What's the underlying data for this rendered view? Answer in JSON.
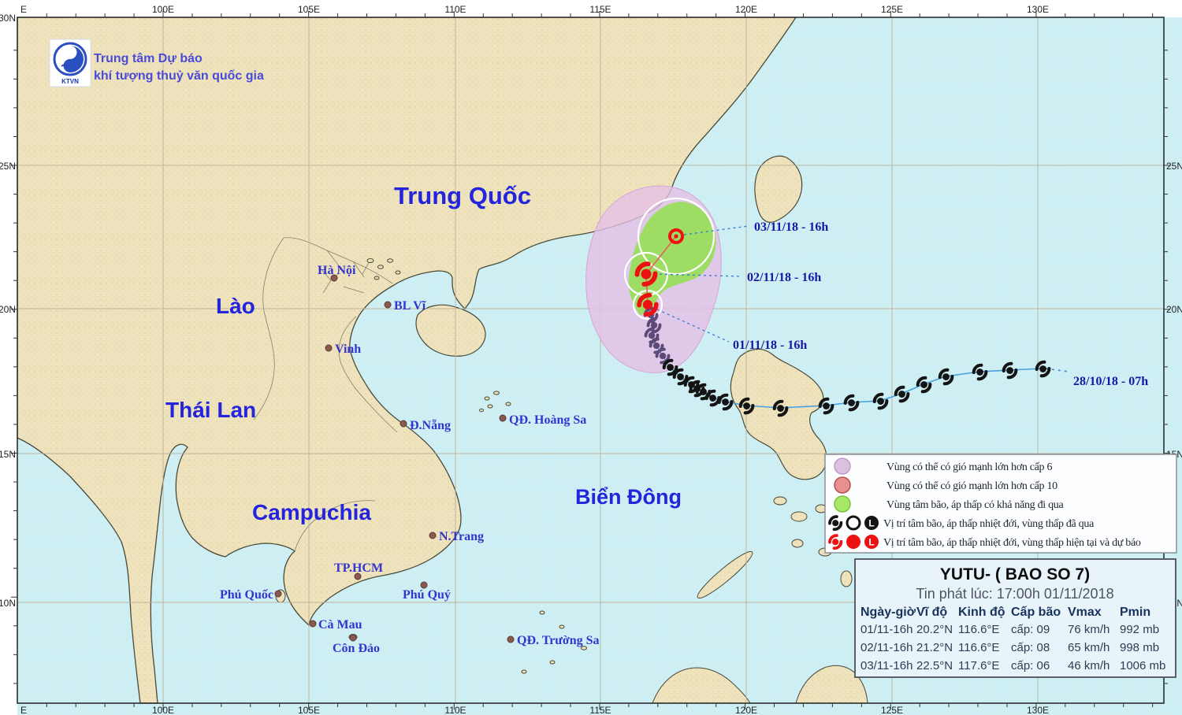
{
  "header": {
    "agency_line1": "Trung tâm Dự báo",
    "agency_line2": "khí tượng thuỷ văn quốc gia",
    "logo_text": "KTVN"
  },
  "axis": {
    "top": [
      "100E",
      "105E",
      "110E",
      "115E",
      "120E",
      "125E",
      "130E"
    ],
    "bottom": [
      "100E",
      "105E",
      "110E",
      "115E",
      "120E",
      "125E",
      "130E"
    ],
    "left": [
      "25N",
      "20N",
      "15N",
      "10N"
    ],
    "right": [
      "25N",
      "20N",
      "15N",
      "10N"
    ],
    "partial_top": "E",
    "partial_bottom": "E",
    "partial_left": "30N"
  },
  "regions": {
    "china": "Trung Quốc",
    "laos": "Lào",
    "thailand": "Thái Lan",
    "cambodia": "Campuchia",
    "sea": "Biển Đông"
  },
  "cities": {
    "hanoi": "Hà Nội",
    "blvi": "BL Vĩ",
    "vinh": "Vinh",
    "danang": "Đ.Nẵng",
    "hoangsa": "QĐ. Hoàng Sa",
    "ntrang": "N.Trang",
    "tphcm": "TP.HCM",
    "phuquoc": "Phú Quốc",
    "phuquy": "Phú Quý",
    "camau": "Cà Mau",
    "condao": "Côn Đảo",
    "truongsa": "QĐ. Trường Sa"
  },
  "track": {
    "t2810": "28/10/18 - 07h",
    "t0111": "01/11/18 - 16h",
    "t0211": "02/11/18 - 16h",
    "t0311": "03/11/18 - 16h"
  },
  "legend": {
    "items": [
      "Vùng có thể có gió mạnh lớn hơn cấp 6",
      "Vùng có thể có gió mạnh lớn hơn cấp 10",
      "Vùng tâm bão, áp thấp có khả năng đi qua",
      "Vị trí tâm bão, áp thấp nhiệt đới, vùng thấp đã qua",
      "Vị trí tâm bão, áp thấp nhiệt đới, vùng thấp hiện tại và dự báo"
    ],
    "letter": "L"
  },
  "storm_panel": {
    "title": "YUTU- ( BAO SO 7)",
    "issued": "Tin phát lúc: 17:00h 01/11/2018",
    "columns": [
      "Ngày-giờ",
      "Vĩ độ",
      "Kinh độ",
      "Cấp bão",
      "Vmax",
      "Pmin"
    ],
    "rows": [
      [
        "01/11-16h",
        "20.2°N",
        "116.6°E",
        "cấp: 09",
        "76 km/h",
        "992 mb"
      ],
      [
        "02/11-16h",
        "21.2°N",
        "116.6°E",
        "cấp: 08",
        "65 km/h",
        "998 mb"
      ],
      [
        "03/11-16h",
        "22.5°N",
        "117.6°E",
        "cấp: 06",
        "46 km/h",
        "1006 mb"
      ]
    ]
  },
  "colors": {
    "sea": "#cdeef2",
    "land": "#eee3bd",
    "zone_wind_cap6": "#e6bfe6",
    "zone_wind_cap10": "#e89090",
    "zone_center_path": "#9ade5c",
    "past_track_symbol": "#141414",
    "forecast_symbol": "#ee1111",
    "track_line": "#44a0e0"
  }
}
